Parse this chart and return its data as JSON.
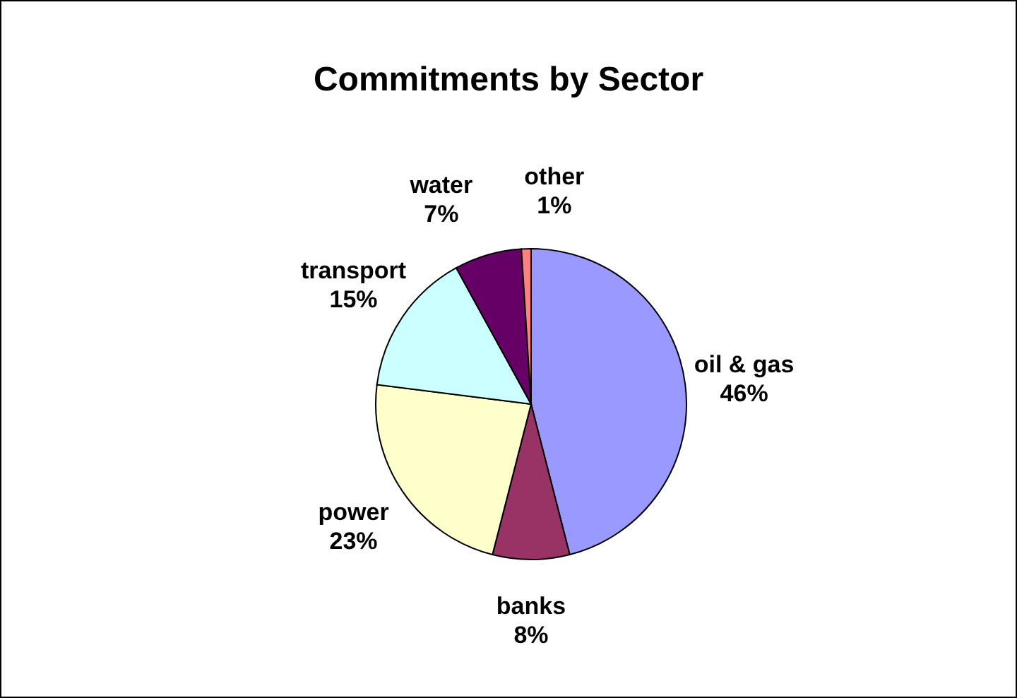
{
  "chart_data": {
    "type": "pie",
    "title": "Commitments by Sector",
    "categories": [
      "oil & gas",
      "banks",
      "power",
      "transport",
      "water",
      "other"
    ],
    "values": [
      46,
      8,
      23,
      15,
      7,
      1
    ],
    "value_labels": [
      "46%",
      "8%",
      "23%",
      "15%",
      "7%",
      "1%"
    ],
    "colors": [
      "#9999ff",
      "#993366",
      "#ffffcc",
      "#ccffff",
      "#660066",
      "#ff8080"
    ],
    "legend": false
  }
}
